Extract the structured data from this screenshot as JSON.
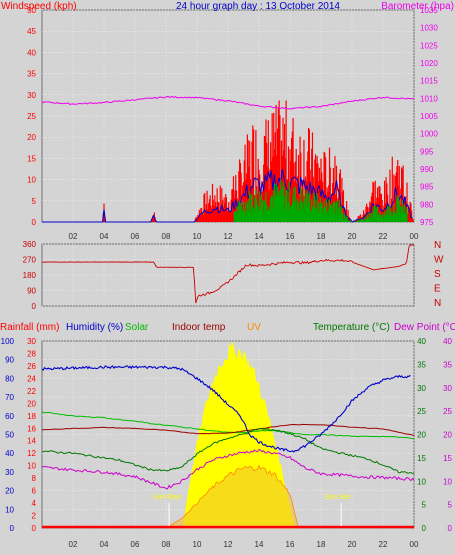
{
  "title": "24 hour graph day : 13 October 2014",
  "colors": {
    "bg": "#d4d4d4",
    "wind": "#ff0000",
    "gust": "#0000cc",
    "avgwind": "#00aa00",
    "baro": "#ee00ee",
    "dir": "#cc0000",
    "hum": "#0000cc",
    "solar": "#00bb00",
    "indoor": "#990000",
    "uv": "#ff8800",
    "temp": "#007700",
    "dew": "#cc00cc",
    "sun": "#ffff00",
    "rain": "#ff0000"
  },
  "x_ticks": [
    "02",
    "04",
    "06",
    "08",
    "10",
    "12",
    "14",
    "16",
    "18",
    "20",
    "22",
    "00"
  ],
  "panel1": {
    "left_label": "Windspeed (kph)",
    "right_label": "Barometer (hpa)",
    "left_ticks": [
      0,
      5,
      10,
      15,
      20,
      25,
      30,
      35,
      40,
      45,
      50
    ],
    "right_ticks": [
      975,
      980,
      985,
      990,
      995,
      1000,
      1005,
      1010,
      1015,
      1020,
      1025,
      1030,
      1035
    ],
    "ylim_left": [
      0,
      50
    ],
    "ylim_right": [
      975,
      1035
    ]
  },
  "panel2": {
    "left_ticks": [
      0,
      90,
      180,
      270,
      360
    ],
    "right_letters": [
      "N",
      "W",
      "S",
      "E",
      "N"
    ],
    "ylim": [
      0,
      360
    ]
  },
  "panel3": {
    "labels": {
      "rain": "Rainfall (mm)",
      "hum": "Humidity (%)",
      "solar": "Solar",
      "indoor": "Indoor temp",
      "uv": "UV",
      "temp": "Temperature (°C)",
      "dew": "Dew Point (°C)"
    },
    "humidity_ticks": [
      0,
      10,
      20,
      30,
      40,
      50,
      60,
      70,
      80,
      90,
      100
    ],
    "rain_ticks": [
      0,
      2,
      4,
      6,
      8,
      10,
      12,
      14,
      16,
      18,
      20,
      22,
      24,
      26,
      28,
      30
    ],
    "temp_ticks": [
      0,
      5,
      10,
      15,
      20,
      25,
      30,
      35,
      40
    ],
    "dew_ticks": [
      0,
      5,
      10,
      15,
      20,
      25,
      30,
      35,
      40
    ],
    "sunrise_label": "Sun Rise",
    "sunset_label": "Sun Set",
    "sunrise_hour": 8.2,
    "sunset_hour": 19.3
  },
  "chart_data": [
    {
      "type": "line",
      "title": "24 hour graph day : 13 October 2014",
      "ylabel": "Windspeed (kph)",
      "y2label": "Barometer (hpa)",
      "x_unit": "hour",
      "series": [
        {
          "name": "Windspeed",
          "x": [
            0,
            3.9,
            4,
            4.1,
            7,
            7.2,
            7.4,
            9.8,
            10.4,
            11.2,
            12,
            13,
            13.6,
            14.2,
            14.8,
            15.6,
            16.2,
            17,
            17.8,
            18.4,
            19,
            19.4,
            20,
            20.8,
            21.4,
            22,
            22.6,
            22.9,
            23.4,
            24
          ],
          "y": [
            0,
            0,
            6,
            0,
            0,
            3,
            0,
            0,
            6,
            9,
            7,
            16,
            23,
            22,
            25,
            27,
            24,
            22,
            18,
            15,
            20,
            8,
            0,
            3,
            11,
            8,
            14,
            18,
            12,
            0
          ]
        },
        {
          "name": "Barometer",
          "x": [
            0,
            2,
            4,
            6,
            8,
            10,
            12,
            14,
            16,
            18,
            20,
            22,
            24
          ],
          "y": [
            1009,
            1008.4,
            1008.8,
            1009.6,
            1010.4,
            1010.2,
            1009.3,
            1007.8,
            1007.1,
            1007.7,
            1009.2,
            1010.3,
            1009.8
          ]
        }
      ]
    },
    {
      "type": "line",
      "ylabel": "Wind direction",
      "x_unit": "hour",
      "series": [
        {
          "name": "Wind direction",
          "x": [
            0,
            4,
            7.2,
            7.4,
            9.8,
            9.9,
            10.1,
            10.8,
            11.6,
            12.4,
            13.2,
            14,
            15,
            16,
            17,
            18,
            19.5,
            20,
            21.4,
            22.2,
            23,
            23.5,
            23.7,
            24
          ],
          "y": [
            255,
            255,
            255,
            225,
            225,
            15,
            60,
            75,
            110,
            170,
            240,
            235,
            245,
            255,
            250,
            265,
            265,
            255,
            210,
            220,
            230,
            245,
            355,
            355
          ]
        }
      ]
    },
    {
      "type": "line",
      "ylabel": "Humidity (%)",
      "x_unit": "hour",
      "series": [
        {
          "name": "Humidity",
          "x": [
            0,
            2,
            4,
            6,
            8,
            9,
            10,
            11,
            12,
            12.8,
            13.4,
            14,
            14.6,
            15.4,
            16.2,
            17,
            18,
            19,
            20,
            21,
            22,
            23,
            23.8
          ],
          "y": [
            85,
            85.5,
            86,
            86,
            86,
            85,
            80,
            74,
            66,
            60,
            50,
            46,
            44,
            42,
            41,
            44,
            50,
            58,
            68,
            75,
            79,
            81,
            81
          ]
        },
        {
          "name": "Solar",
          "x": [
            0,
            1,
            2,
            4,
            6,
            8,
            10,
            12,
            13,
            14,
            15,
            16,
            17,
            18,
            20,
            22,
            24
          ],
          "y": [
            62,
            61,
            60,
            59,
            57,
            55,
            53,
            51,
            51,
            52,
            52,
            51,
            50,
            50,
            49,
            49,
            48
          ]
        },
        {
          "name": "Indoor temp",
          "x": [
            0,
            2,
            4,
            6,
            8,
            10,
            12,
            14,
            16,
            18,
            20,
            22,
            24
          ],
          "y": [
            21,
            21.3,
            21.5,
            21.3,
            20.9,
            20.2,
            20.3,
            21.2,
            22.1,
            22.1,
            21.6,
            21.2,
            19.8
          ]
        },
        {
          "name": "UV",
          "x": [
            8.2,
            9,
            10,
            11,
            12,
            13,
            14,
            15,
            16,
            16.5
          ],
          "y": [
            0.3,
            1.5,
            4,
            6.5,
            8.4,
            9.6,
            9.7,
            8.6,
            5.5,
            0.4
          ]
        },
        {
          "name": "Temperature",
          "x": [
            0,
            1,
            2,
            3,
            4,
            5,
            6,
            7,
            8,
            9,
            10,
            11,
            12,
            13,
            14,
            15,
            16,
            17,
            18,
            19,
            20,
            21,
            22,
            23,
            24
          ],
          "y": [
            16.5,
            16.2,
            16,
            15.5,
            15,
            14.5,
            13.5,
            12.5,
            12.2,
            13,
            15.8,
            18,
            19.2,
            20.1,
            21.2,
            21,
            20.2,
            19,
            17,
            16.2,
            15.5,
            14.8,
            13.5,
            12,
            11.8
          ]
        },
        {
          "name": "Dew Point",
          "x": [
            0,
            2,
            4,
            6,
            8,
            9,
            10,
            11,
            12,
            13,
            14,
            15,
            16,
            17,
            18,
            19,
            20,
            21,
            22,
            23,
            24
          ],
          "y": [
            13,
            12.4,
            12,
            11,
            8.5,
            10,
            12.5,
            14.5,
            15.5,
            16.2,
            16.5,
            16,
            15,
            12.8,
            11.6,
            11.4,
            11.1,
            10.9,
            10.8,
            10.6,
            10.4
          ]
        },
        {
          "name": "Rainfall",
          "x": [
            0,
            24
          ],
          "y": [
            0,
            0
          ]
        }
      ]
    }
  ]
}
